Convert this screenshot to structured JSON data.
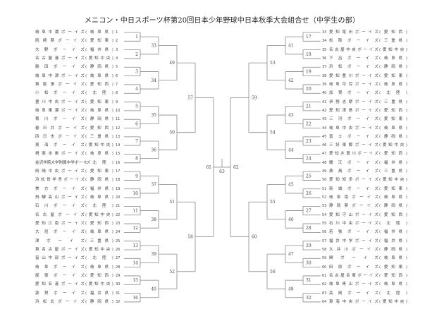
{
  "title": "メニコン・中日スポーツ杯第20回日本少年野球中日本秋季大会組合せ（中学生の部）",
  "team_suffix": "ボーイズ",
  "left_teams": [
    {
      "no": "1",
      "name": "岐阜中濃",
      "pref": "岐阜県"
    },
    {
      "no": "2",
      "name": "岡崎葵",
      "pref": "愛知東"
    },
    {
      "no": "3",
      "name": "大野",
      "pref": "福井県"
    },
    {
      "no": "4",
      "name": "名古屋港",
      "pref": "愛知中央"
    },
    {
      "no": "5",
      "name": "磐田",
      "pref": "静岡県"
    },
    {
      "no": "6",
      "name": "岐阜中津",
      "pref": "岐阜県"
    },
    {
      "no": "7",
      "name": "東尾張",
      "pref": "愛知西"
    },
    {
      "no": "8",
      "name": "小松",
      "pref": "北陸"
    },
    {
      "no": "9",
      "name": "豊川中央",
      "pref": "愛知東"
    },
    {
      "no": "10",
      "name": "岐阜東濃",
      "pref": "岐阜県"
    },
    {
      "no": "11",
      "name": "菊川",
      "pref": "静岡県"
    },
    {
      "no": "12",
      "name": "春日井",
      "pref": "愛知西"
    },
    {
      "no": "13",
      "name": "四日市",
      "pref": "三重県"
    },
    {
      "no": "14",
      "name": "東海",
      "pref": "愛知中央"
    },
    {
      "no": "15",
      "name": "揖斐本巣",
      "pref": "岐阜県"
    },
    {
      "no": "16",
      "name": "金沢学院大学附属中学",
      "pref": "北陸"
    },
    {
      "no": "17",
      "name": "岡崎中央",
      "pref": "愛知東"
    },
    {
      "no": "18",
      "name": "浜松修学舎",
      "pref": "静岡県"
    },
    {
      "no": "19",
      "name": "美方",
      "pref": "福井県"
    },
    {
      "no": "20",
      "name": "飛騨高山",
      "pref": "岐阜県"
    },
    {
      "no": "21",
      "name": "石川",
      "pref": "北陸"
    },
    {
      "no": "22",
      "name": "名古屋",
      "pref": "愛知中央"
    },
    {
      "no": "23",
      "name": "愛知江南",
      "pref": "愛知西"
    },
    {
      "no": "24",
      "name": "大垣",
      "pref": "岐阜県"
    },
    {
      "no": "25",
      "name": "津",
      "pref": "三重県"
    },
    {
      "no": "26",
      "name": "東名古屋",
      "pref": "愛知中央"
    },
    {
      "no": "27",
      "name": "富山中部",
      "pref": "北陸"
    },
    {
      "no": "28",
      "name": "岐阜",
      "pref": "岐阜県"
    },
    {
      "no": "29",
      "name": "尾張",
      "pref": "愛知西"
    },
    {
      "no": "30",
      "name": "愛知名港",
      "pref": "愛知中央"
    },
    {
      "no": "31",
      "name": "敦賀",
      "pref": "福井県"
    },
    {
      "no": "32",
      "name": "浜松北",
      "pref": "静岡県"
    }
  ],
  "right_teams": [
    {
      "no": "33",
      "name": "愛知尾州",
      "pref": "愛知西"
    },
    {
      "no": "34",
      "name": "松阪",
      "pref": "三重県"
    },
    {
      "no": "35",
      "name": "名古屋中央",
      "pref": "愛知中央"
    },
    {
      "no": "36",
      "name": "下呂",
      "pref": "岐阜県"
    },
    {
      "no": "37",
      "name": "浜松",
      "pref": "静岡県"
    },
    {
      "no": "38",
      "name": "愛知豊川",
      "pref": "愛知東"
    },
    {
      "no": "39",
      "name": "岐阜可児",
      "pref": "岐阜県"
    },
    {
      "no": "40",
      "name": "加賀",
      "pref": "北陸"
    },
    {
      "no": "41",
      "name": "伊勢志摩",
      "pref": "三重県"
    },
    {
      "no": "42",
      "name": "愛知津島",
      "pref": "愛知西"
    },
    {
      "no": "43",
      "name": "三河",
      "pref": "愛知東"
    },
    {
      "no": "44",
      "name": "岐阜中央",
      "pref": "岐阜県"
    },
    {
      "no": "45",
      "name": "富士",
      "pref": "静岡県"
    },
    {
      "no": "46",
      "name": "三好東郷",
      "pref": "愛知中央"
    },
    {
      "no": "47",
      "name": "愛知木曽川",
      "pref": "愛知西"
    },
    {
      "no": "48",
      "name": "鯖江",
      "pref": "福井県"
    },
    {
      "no": "49",
      "name": "桑員",
      "pref": "三重県"
    },
    {
      "no": "50",
      "name": "愛知知多",
      "pref": "愛知中央"
    },
    {
      "no": "51",
      "name": "新城",
      "pref": "愛知東"
    },
    {
      "no": "52",
      "name": "岐阜南",
      "pref": "岐阜県"
    },
    {
      "no": "53",
      "name": "静岡葵",
      "pref": "静岡県"
    },
    {
      "no": "54",
      "name": "愛知守山",
      "pref": "愛知西"
    },
    {
      "no": "55",
      "name": "石川中央",
      "pref": "北陸"
    },
    {
      "no": "56",
      "name": "若狭",
      "pref": "福井県"
    },
    {
      "no": "57",
      "name": "福井中学",
      "pref": "福井県"
    },
    {
      "no": "58",
      "name": "大井川",
      "pref": "静岡県"
    },
    {
      "no": "59",
      "name": "関",
      "pref": "岐阜県"
    },
    {
      "no": "60",
      "name": "田原",
      "pref": "愛知東"
    },
    {
      "no": "61",
      "name": "名古屋名東",
      "pref": "愛知西"
    },
    {
      "no": "62",
      "name": "岐阜青山",
      "pref": "岐阜県"
    },
    {
      "no": "63",
      "name": "高岡",
      "pref": "北陸"
    },
    {
      "no": "64",
      "name": "東海中央",
      "pref": "愛知中央"
    }
  ],
  "bracket": {
    "left_rounds": [
      [
        "1",
        "2",
        "3",
        "4",
        "5",
        "6",
        "7",
        "8",
        "9",
        "10",
        "11",
        "12",
        "13",
        "14",
        "15",
        "16"
      ],
      [
        "33",
        "34",
        "35",
        "36",
        "37",
        "38",
        "39",
        "40"
      ],
      [
        "49",
        "50",
        "51",
        "52"
      ],
      [
        "57",
        "58"
      ],
      [
        "61"
      ]
    ],
    "right_rounds": [
      [
        "17",
        "18",
        "19",
        "20",
        "21",
        "22",
        "23",
        "24",
        "25",
        "26",
        "27",
        "28",
        "29",
        "30",
        "31",
        "32"
      ],
      [
        "41",
        "42",
        "43",
        "44",
        "45",
        "46",
        "47",
        "48"
      ],
      [
        "53",
        "54",
        "55",
        "56"
      ],
      [
        "59",
        "60"
      ],
      [
        "62"
      ]
    ],
    "final": "63",
    "line_color": "#888888"
  }
}
